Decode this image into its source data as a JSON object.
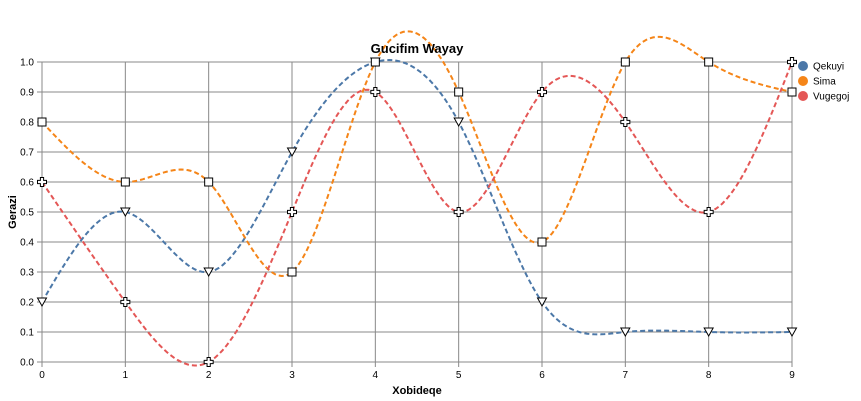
{
  "chart_data": {
    "type": "line",
    "title": "Gucifim Wayay",
    "xlabel": "Xobideqe",
    "ylabel": "Gerazi",
    "x": [
      0,
      1,
      2,
      3,
      4,
      5,
      6,
      7,
      8,
      9
    ],
    "xlim": [
      0,
      9
    ],
    "ylim": [
      0,
      1
    ],
    "x_ticks": [
      "0",
      "1",
      "2",
      "3",
      "4",
      "5",
      "6",
      "7",
      "8",
      "9"
    ],
    "y_ticks": [
      "0.0",
      "0.1",
      "0.2",
      "0.3",
      "0.4",
      "0.5",
      "0.6",
      "0.7",
      "0.8",
      "0.9",
      "1.0"
    ],
    "grid": true,
    "legend_position": "right",
    "line_style": "dashed",
    "interpolation": "smooth",
    "series": [
      {
        "name": "Qekuyi",
        "color": "#4c78a8",
        "marker": "triangle-down",
        "values": [
          0.2,
          0.5,
          0.3,
          0.7,
          1.0,
          0.8,
          0.2,
          0.1,
          0.1,
          0.1
        ]
      },
      {
        "name": "Sima",
        "color": "#f58518",
        "marker": "square",
        "values": [
          0.8,
          0.6,
          0.6,
          0.3,
          1.0,
          0.9,
          0.4,
          1.0,
          1.0,
          0.9
        ]
      },
      {
        "name": "Vugegoj",
        "color": "#e45756",
        "marker": "cross",
        "values": [
          0.6,
          0.2,
          0.0,
          0.5,
          0.9,
          0.5,
          0.9,
          0.8,
          0.5,
          1.0
        ]
      }
    ]
  }
}
